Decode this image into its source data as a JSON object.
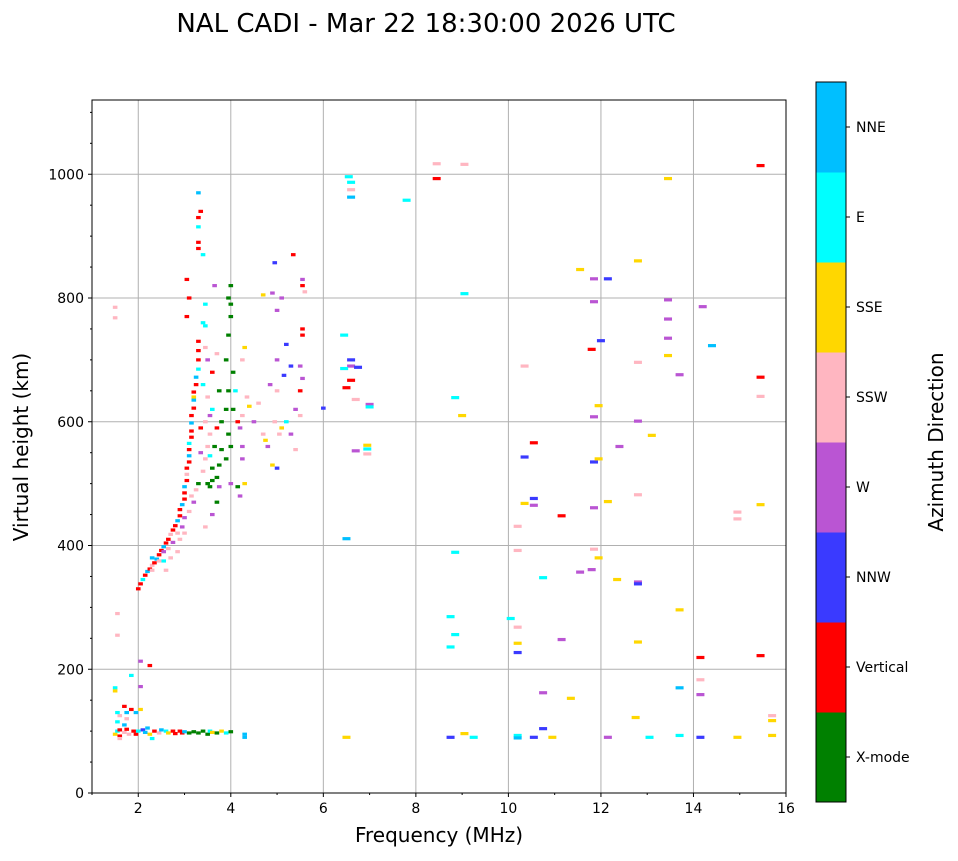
{
  "chart_data": {
    "type": "scatter",
    "title": "NAL CADI - Mar 22 18:30:00 2026 UTC",
    "xlabel": "Frequency (MHz)",
    "ylabel": "Virtual height (km)",
    "xlim": [
      1,
      16
    ],
    "ylim": [
      0,
      1120
    ],
    "xticks": [
      2,
      4,
      6,
      8,
      10,
      12,
      14,
      16
    ],
    "yticks": [
      0,
      200,
      400,
      600,
      800,
      1000
    ],
    "grid": true,
    "colorbar": {
      "label": "Azimuth Direction",
      "categories": [
        "X-mode",
        "Vertical",
        "NNW",
        "W",
        "SSW",
        "SSE",
        "E",
        "NNE"
      ],
      "colors": [
        "#008000",
        "#ff0000",
        "#3a3aff",
        "#ba55d3",
        "#ffb6c1",
        "#ffd700",
        "#00ffff",
        "#00bfff"
      ]
    },
    "point_fields": [
      "frequency_mhz",
      "virtual_height_km",
      "direction_index"
    ],
    "points": [
      [
        8.45,
        1017,
        4
      ],
      [
        8.45,
        993,
        1
      ],
      [
        9.05,
        1016,
        4
      ],
      [
        6.55,
        996,
        6
      ],
      [
        6.6,
        987,
        6
      ],
      [
        6.6,
        975,
        4
      ],
      [
        6.6,
        963,
        7
      ],
      [
        7.8,
        958,
        6
      ],
      [
        13.45,
        993,
        5
      ],
      [
        15.45,
        1014,
        1
      ],
      [
        11.55,
        846,
        5
      ],
      [
        11.85,
        831,
        3
      ],
      [
        12.15,
        831,
        2
      ],
      [
        12.8,
        860,
        5
      ],
      [
        9.05,
        807,
        6
      ],
      [
        13.45,
        797,
        3
      ],
      [
        14.2,
        786,
        3
      ],
      [
        11.85,
        794,
        3
      ],
      [
        13.45,
        766,
        3
      ],
      [
        13.45,
        735,
        3
      ],
      [
        12.0,
        731,
        2
      ],
      [
        11.8,
        717,
        1
      ],
      [
        14.4,
        723,
        7
      ],
      [
        13.45,
        707,
        5
      ],
      [
        13.7,
        676,
        3
      ],
      [
        12.8,
        696,
        4
      ],
      [
        10.35,
        690,
        4
      ],
      [
        6.45,
        740,
        6
      ],
      [
        6.6,
        700,
        2
      ],
      [
        6.6,
        690,
        3
      ],
      [
        6.75,
        688,
        2
      ],
      [
        6.45,
        686,
        6
      ],
      [
        6.6,
        667,
        1
      ],
      [
        6.5,
        655,
        1
      ],
      [
        6.7,
        636,
        4
      ],
      [
        7.0,
        628,
        3
      ],
      [
        7.0,
        624,
        6
      ],
      [
        15.45,
        672,
        1
      ],
      [
        15.45,
        641,
        4
      ],
      [
        8.85,
        639,
        6
      ],
      [
        9.0,
        610,
        5
      ],
      [
        11.95,
        626,
        5
      ],
      [
        11.85,
        608,
        3
      ],
      [
        12.8,
        601,
        3
      ],
      [
        13.1,
        578,
        5
      ],
      [
        12.4,
        560,
        3
      ],
      [
        10.55,
        566,
        1
      ],
      [
        10.35,
        543,
        2
      ],
      [
        11.85,
        535,
        2
      ],
      [
        11.95,
        540,
        5
      ],
      [
        12.15,
        471,
        5
      ],
      [
        12.8,
        482,
        4
      ],
      [
        6.7,
        553,
        3
      ],
      [
        6.95,
        562,
        5
      ],
      [
        6.95,
        556,
        6
      ],
      [
        6.95,
        548,
        4
      ],
      [
        10.35,
        468,
        5
      ],
      [
        10.55,
        476,
        2
      ],
      [
        10.55,
        465,
        3
      ],
      [
        11.15,
        448,
        1
      ],
      [
        11.85,
        461,
        3
      ],
      [
        14.95,
        454,
        4
      ],
      [
        14.95,
        443,
        4
      ],
      [
        15.45,
        466,
        5
      ],
      [
        6.5,
        411,
        7
      ],
      [
        8.85,
        389,
        6
      ],
      [
        10.2,
        431,
        4
      ],
      [
        10.2,
        392,
        4
      ],
      [
        10.75,
        348,
        6
      ],
      [
        11.85,
        394,
        4
      ],
      [
        11.95,
        380,
        5
      ],
      [
        11.55,
        357,
        3
      ],
      [
        11.8,
        361,
        3
      ],
      [
        12.35,
        345,
        5
      ],
      [
        12.8,
        341,
        3
      ],
      [
        12.8,
        338,
        2
      ],
      [
        13.7,
        296,
        5
      ],
      [
        8.75,
        285,
        6
      ],
      [
        8.85,
        256,
        6
      ],
      [
        8.75,
        236,
        6
      ],
      [
        10.05,
        282,
        6
      ],
      [
        10.2,
        268,
        4
      ],
      [
        10.2,
        242,
        5
      ],
      [
        10.2,
        227,
        2
      ],
      [
        11.15,
        248,
        3
      ],
      [
        12.8,
        244,
        5
      ],
      [
        14.15,
        219,
        1
      ],
      [
        15.45,
        222,
        1
      ],
      [
        10.75,
        162,
        3
      ],
      [
        11.35,
        153,
        5
      ],
      [
        12.75,
        122,
        5
      ],
      [
        13.7,
        170,
        7
      ],
      [
        14.15,
        183,
        4
      ],
      [
        14.15,
        159,
        3
      ],
      [
        15.7,
        125,
        4
      ],
      [
        15.7,
        117,
        5
      ],
      [
        10.75,
        104,
        2
      ],
      [
        6.5,
        90,
        5
      ],
      [
        8.75,
        90,
        2
      ],
      [
        9.05,
        96,
        5
      ],
      [
        9.25,
        90,
        6
      ],
      [
        10.2,
        93,
        6
      ],
      [
        10.2,
        89,
        7
      ],
      [
        10.55,
        90,
        2
      ],
      [
        10.95,
        90,
        5
      ],
      [
        12.15,
        90,
        3
      ],
      [
        13.05,
        90,
        6
      ],
      [
        13.7,
        93,
        6
      ],
      [
        14.15,
        90,
        2
      ],
      [
        14.95,
        90,
        5
      ],
      [
        15.7,
        93,
        5
      ],
      [
        4.3,
        95,
        7
      ],
      [
        4.3,
        90,
        7
      ],
      [
        2.0,
        330,
        1
      ],
      [
        2.05,
        338,
        1
      ],
      [
        2.1,
        345,
        6
      ],
      [
        2.15,
        352,
        1
      ],
      [
        2.2,
        358,
        7
      ],
      [
        2.25,
        362,
        1
      ],
      [
        2.3,
        368,
        4
      ],
      [
        2.35,
        372,
        1
      ],
      [
        2.4,
        378,
        7
      ],
      [
        2.45,
        385,
        1
      ],
      [
        2.5,
        392,
        1
      ],
      [
        2.55,
        398,
        7
      ],
      [
        2.6,
        404,
        1
      ],
      [
        2.65,
        410,
        1
      ],
      [
        2.7,
        418,
        4
      ],
      [
        2.75,
        425,
        1
      ],
      [
        2.8,
        432,
        1
      ],
      [
        2.85,
        440,
        7
      ],
      [
        2.9,
        448,
        1
      ],
      [
        2.9,
        458,
        1
      ],
      [
        2.95,
        466,
        7
      ],
      [
        3.0,
        475,
        1
      ],
      [
        3.0,
        485,
        1
      ],
      [
        3.0,
        495,
        7
      ],
      [
        3.05,
        505,
        1
      ],
      [
        3.05,
        515,
        4
      ],
      [
        3.05,
        525,
        1
      ],
      [
        3.1,
        535,
        1
      ],
      [
        3.1,
        545,
        7
      ],
      [
        3.1,
        555,
        1
      ],
      [
        3.1,
        565,
        6
      ],
      [
        3.15,
        575,
        1
      ],
      [
        3.15,
        585,
        1
      ],
      [
        3.15,
        598,
        7
      ],
      [
        3.15,
        610,
        1
      ],
      [
        3.2,
        622,
        1
      ],
      [
        3.2,
        635,
        7
      ],
      [
        3.2,
        648,
        1
      ],
      [
        3.25,
        660,
        1
      ],
      [
        3.25,
        672,
        7
      ],
      [
        3.3,
        685,
        6
      ],
      [
        3.3,
        700,
        1
      ],
      [
        3.3,
        715,
        1
      ],
      [
        3.3,
        730,
        1
      ],
      [
        3.05,
        770,
        1
      ],
      [
        3.1,
        800,
        1
      ],
      [
        3.05,
        830,
        1
      ],
      [
        3.3,
        880,
        1
      ],
      [
        3.3,
        890,
        1
      ],
      [
        3.3,
        915,
        6
      ],
      [
        3.35,
        940,
        1
      ],
      [
        3.3,
        930,
        1
      ],
      [
        3.3,
        970,
        7
      ],
      [
        3.4,
        870,
        6
      ],
      [
        3.45,
        790,
        6
      ],
      [
        3.4,
        760,
        6
      ],
      [
        2.3,
        360,
        4
      ],
      [
        2.45,
        375,
        4
      ],
      [
        2.55,
        390,
        3
      ],
      [
        2.65,
        395,
        4
      ],
      [
        2.75,
        405,
        3
      ],
      [
        2.7,
        380,
        4
      ],
      [
        2.85,
        420,
        4
      ],
      [
        2.95,
        430,
        3
      ],
      [
        2.9,
        410,
        4
      ],
      [
        3.0,
        445,
        3
      ],
      [
        3.1,
        455,
        4
      ],
      [
        3.2,
        470,
        3
      ],
      [
        3.25,
        490,
        4
      ],
      [
        3.3,
        500,
        0
      ],
      [
        3.15,
        480,
        4
      ],
      [
        3.4,
        520,
        4
      ],
      [
        3.5,
        500,
        0
      ],
      [
        3.55,
        495,
        0
      ],
      [
        3.6,
        505,
        0
      ],
      [
        3.7,
        510,
        0
      ],
      [
        3.6,
        525,
        0
      ],
      [
        3.75,
        530,
        0
      ],
      [
        3.45,
        540,
        4
      ],
      [
        3.35,
        550,
        3
      ],
      [
        3.5,
        560,
        4
      ],
      [
        3.65,
        560,
        0
      ],
      [
        3.8,
        555,
        0
      ],
      [
        3.9,
        540,
        0
      ],
      [
        3.55,
        580,
        4
      ],
      [
        3.35,
        590,
        1
      ],
      [
        3.45,
        600,
        4
      ],
      [
        3.7,
        590,
        1
      ],
      [
        3.8,
        600,
        0
      ],
      [
        3.95,
        580,
        0
      ],
      [
        4.0,
        560,
        0
      ],
      [
        4.05,
        620,
        0
      ],
      [
        3.9,
        620,
        0
      ],
      [
        3.6,
        620,
        6
      ],
      [
        3.5,
        640,
        4
      ],
      [
        3.75,
        650,
        0
      ],
      [
        3.95,
        650,
        0
      ],
      [
        4.05,
        680,
        0
      ],
      [
        3.9,
        700,
        0
      ],
      [
        3.95,
        740,
        0
      ],
      [
        4.0,
        770,
        0
      ],
      [
        3.95,
        800,
        0
      ],
      [
        4.0,
        820,
        0
      ],
      [
        3.6,
        680,
        1
      ],
      [
        3.5,
        700,
        3
      ],
      [
        3.7,
        710,
        4
      ],
      [
        4.1,
        650,
        6
      ],
      [
        4.15,
        600,
        1
      ],
      [
        4.2,
        590,
        3
      ],
      [
        4.25,
        560,
        3
      ],
      [
        4.25,
        540,
        3
      ],
      [
        4.3,
        500,
        5
      ],
      [
        4.2,
        480,
        3
      ],
      [
        4.35,
        640,
        4
      ],
      [
        4.25,
        610,
        4
      ],
      [
        4.4,
        625,
        5
      ],
      [
        4.5,
        600,
        3
      ],
      [
        4.6,
        630,
        4
      ],
      [
        4.7,
        580,
        4
      ],
      [
        4.75,
        570,
        5
      ],
      [
        4.8,
        560,
        3
      ],
      [
        4.9,
        530,
        5
      ],
      [
        5.0,
        525,
        2
      ],
      [
        4.95,
        600,
        4
      ],
      [
        5.05,
        580,
        4
      ],
      [
        5.1,
        590,
        5
      ],
      [
        5.2,
        600,
        6
      ],
      [
        5.3,
        580,
        3
      ],
      [
        5.0,
        650,
        4
      ],
      [
        4.85,
        660,
        3
      ],
      [
        5.0,
        700,
        3
      ],
      [
        5.15,
        675,
        2
      ],
      [
        5.3,
        690,
        2
      ],
      [
        5.5,
        690,
        3
      ],
      [
        5.55,
        670,
        3
      ],
      [
        5.5,
        650,
        1
      ],
      [
        5.4,
        620,
        3
      ],
      [
        5.2,
        725,
        2
      ],
      [
        5.0,
        780,
        3
      ],
      [
        5.1,
        800,
        3
      ],
      [
        4.9,
        808,
        3
      ],
      [
        4.7,
        805,
        5
      ],
      [
        5.35,
        870,
        1
      ],
      [
        4.95,
        857,
        2
      ],
      [
        5.55,
        830,
        3
      ],
      [
        5.55,
        820,
        1
      ],
      [
        5.55,
        750,
        1
      ],
      [
        5.55,
        740,
        1
      ],
      [
        5.6,
        810,
        4
      ],
      [
        6.0,
        622,
        2
      ],
      [
        5.5,
        610,
        4
      ],
      [
        5.4,
        555,
        4
      ],
      [
        3.6,
        450,
        3
      ],
      [
        3.7,
        470,
        0
      ],
      [
        3.45,
        430,
        4
      ],
      [
        3.0,
        420,
        4
      ],
      [
        2.85,
        390,
        4
      ],
      [
        2.6,
        360,
        4
      ],
      [
        2.55,
        375,
        6
      ],
      [
        2.3,
        380,
        7
      ],
      [
        3.2,
        640,
        5
      ],
      [
        3.4,
        660,
        6
      ],
      [
        3.55,
        610,
        3
      ],
      [
        3.75,
        495,
        3
      ],
      [
        4.15,
        495,
        0
      ],
      [
        4.0,
        500,
        3
      ],
      [
        3.65,
        820,
        3
      ],
      [
        4.25,
        700,
        4
      ],
      [
        4.3,
        720,
        5
      ],
      [
        4.0,
        790,
        0
      ],
      [
        3.45,
        720,
        4
      ],
      [
        3.45,
        755,
        6
      ],
      [
        3.55,
        545,
        6
      ],
      [
        1.5,
        95,
        5
      ],
      [
        1.55,
        100,
        6
      ],
      [
        1.6,
        92,
        1
      ],
      [
        1.7,
        98,
        4
      ],
      [
        1.75,
        103,
        1
      ],
      [
        1.8,
        95,
        4
      ],
      [
        1.9,
        100,
        1
      ],
      [
        1.95,
        95,
        1
      ],
      [
        2.0,
        100,
        6
      ],
      [
        2.1,
        102,
        2
      ],
      [
        2.15,
        98,
        7
      ],
      [
        2.2,
        105,
        7
      ],
      [
        2.25,
        95,
        5
      ],
      [
        2.35,
        100,
        1
      ],
      [
        2.45,
        97,
        4
      ],
      [
        2.5,
        102,
        7
      ],
      [
        2.6,
        100,
        6
      ],
      [
        2.65,
        97,
        5
      ],
      [
        2.75,
        100,
        1
      ],
      [
        2.8,
        96,
        1
      ],
      [
        2.9,
        100,
        1
      ],
      [
        2.95,
        97,
        1
      ],
      [
        3.0,
        99,
        7
      ],
      [
        3.1,
        97,
        0
      ],
      [
        3.2,
        99,
        0
      ],
      [
        3.3,
        97,
        0
      ],
      [
        3.4,
        100,
        0
      ],
      [
        3.5,
        95,
        0
      ],
      [
        3.55,
        100,
        6
      ],
      [
        3.6,
        98,
        5
      ],
      [
        3.7,
        97,
        0
      ],
      [
        3.8,
        100,
        5
      ],
      [
        3.9,
        97,
        6
      ],
      [
        4.0,
        99,
        0
      ],
      [
        2.3,
        88,
        6
      ],
      [
        1.6,
        88,
        4
      ],
      [
        1.5,
        170,
        6
      ],
      [
        1.5,
        165,
        5
      ],
      [
        1.6,
        125,
        4
      ],
      [
        1.55,
        130,
        6
      ],
      [
        1.7,
        140,
        1
      ],
      [
        1.75,
        130,
        7
      ],
      [
        1.75,
        120,
        4
      ],
      [
        1.85,
        135,
        1
      ],
      [
        1.85,
        190,
        6
      ],
      [
        1.95,
        130,
        7
      ],
      [
        2.05,
        172,
        3
      ],
      [
        2.05,
        135,
        5
      ],
      [
        2.05,
        213,
        3
      ],
      [
        2.25,
        206,
        1
      ],
      [
        1.55,
        290,
        4
      ],
      [
        1.55,
        255,
        4
      ],
      [
        1.5,
        785,
        4
      ],
      [
        1.5,
        768,
        4
      ],
      [
        1.6,
        102,
        1
      ],
      [
        1.7,
        110,
        7
      ],
      [
        1.55,
        115,
        6
      ]
    ]
  }
}
